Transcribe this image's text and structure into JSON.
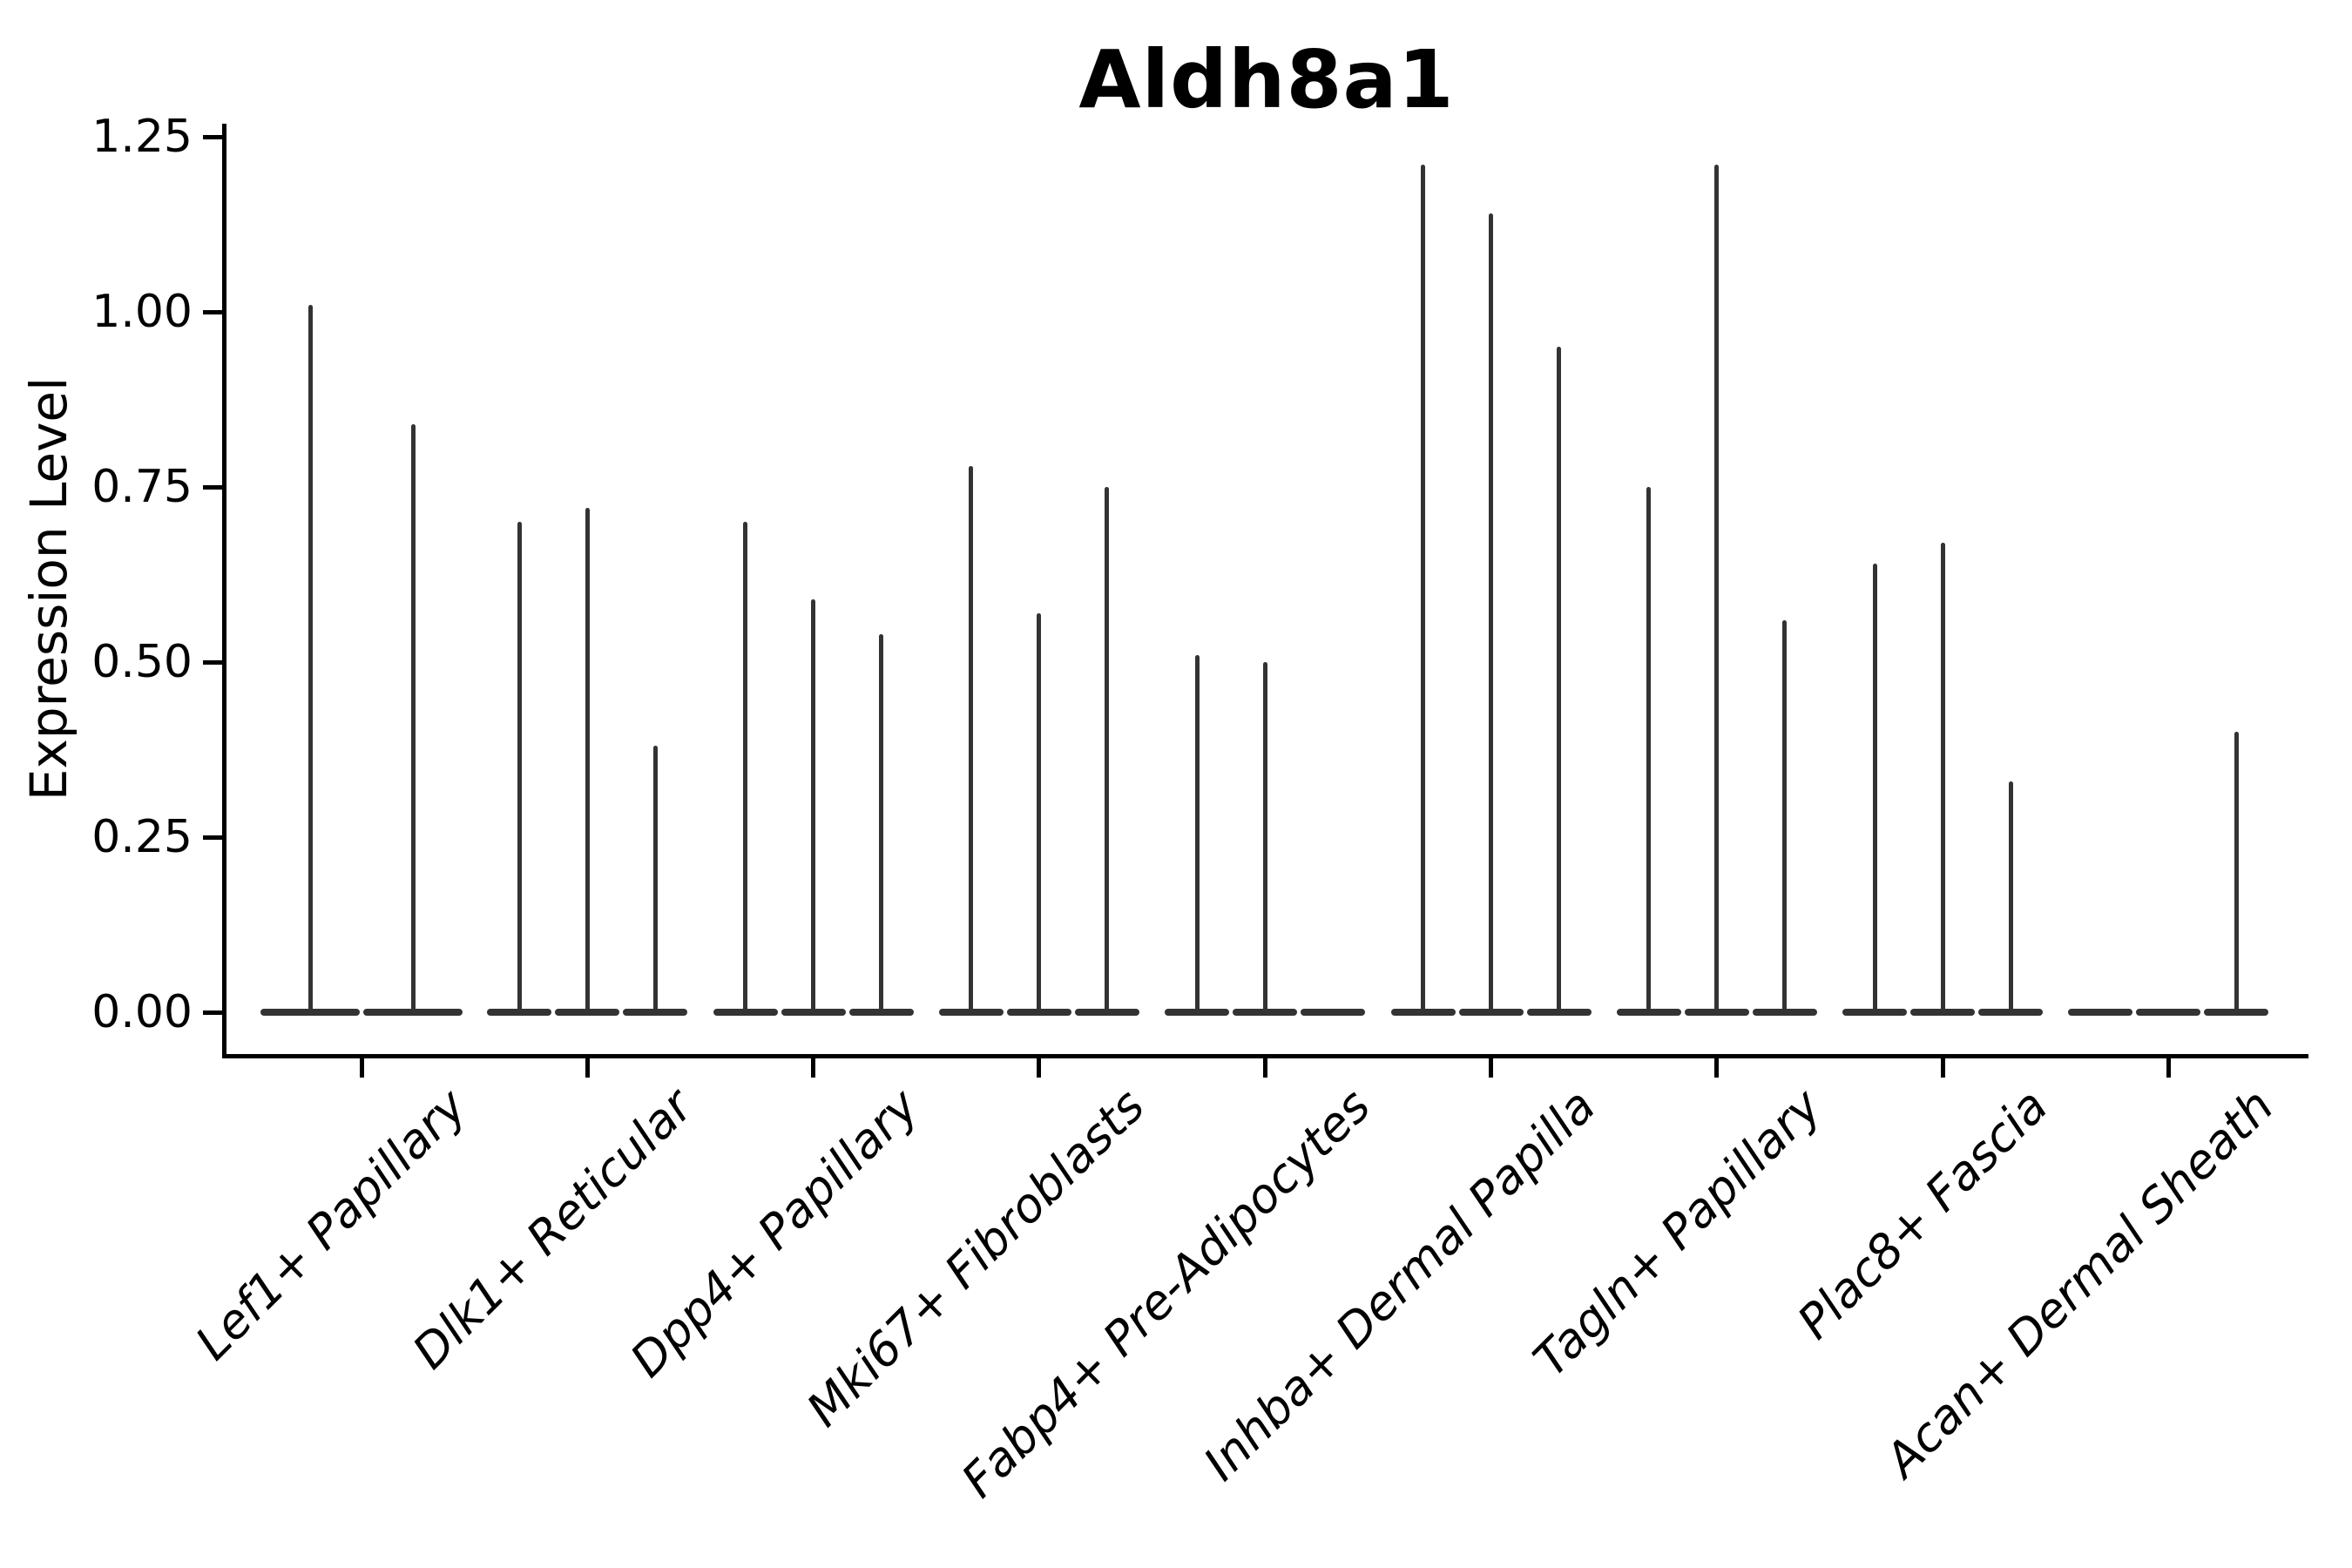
{
  "title": "Aldh8a1",
  "ylabel": "Expression Level",
  "chart_data": {
    "type": "violin",
    "title": "Aldh8a1",
    "xlabel": "",
    "ylabel": "Expression Level",
    "ylim": [
      -0.06,
      1.27
    ],
    "grid": false,
    "legend": "none",
    "yticks": [
      0.0,
      0.25,
      0.5,
      0.75,
      1.0,
      1.25
    ],
    "yticklabels": [
      "0.00",
      "0.25",
      "0.50",
      "0.75",
      "1.00",
      "1.25"
    ],
    "categories": [
      "Lef1+ Papillary",
      "Dlk1+ Reticular",
      "Dpp4+ Papillary",
      "Mki67+ Fibroblasts",
      "Fabp4+ Pre-Adipocytes",
      "Inhba+ Dermal Papilla",
      "Tagln+ Papillary",
      "Plac8+ Fascia",
      "Acan+ Dermal Sheath"
    ],
    "groups": [
      {
        "category": "Lef1+ Papillary",
        "violins": [
          {
            "dx": -59,
            "width": 118,
            "peak": 1.01
          },
          {
            "dx": 59,
            "width": 118,
            "peak": 0.84
          }
        ]
      },
      {
        "category": "Dlk1+ Reticular",
        "violins": [
          {
            "dx": -78,
            "width": 78,
            "peak": 0.7
          },
          {
            "dx": 0,
            "width": 78,
            "peak": 0.72
          },
          {
            "dx": 78,
            "width": 78,
            "peak": 0.38
          }
        ]
      },
      {
        "category": "Dpp4+ Papillary",
        "violins": [
          {
            "dx": -78,
            "width": 78,
            "peak": 0.7
          },
          {
            "dx": 0,
            "width": 78,
            "peak": 0.59
          },
          {
            "dx": 78,
            "width": 78,
            "peak": 0.54
          }
        ]
      },
      {
        "category": "Mki67+ Fibroblasts",
        "violins": [
          {
            "dx": -78,
            "width": 78,
            "peak": 0.78
          },
          {
            "dx": 0,
            "width": 78,
            "peak": 0.57
          },
          {
            "dx": 78,
            "width": 78,
            "peak": 0.75
          }
        ]
      },
      {
        "category": "Fabp4+ Pre-Adipocytes",
        "violins": [
          {
            "dx": -78,
            "width": 78,
            "peak": 0.51
          },
          {
            "dx": 0,
            "width": 78,
            "peak": 0.5
          },
          {
            "dx": 78,
            "width": 78,
            "peak": 0.0
          }
        ]
      },
      {
        "category": "Inhba+ Dermal Papilla",
        "violins": [
          {
            "dx": -78,
            "width": 78,
            "peak": 1.21
          },
          {
            "dx": 0,
            "width": 78,
            "peak": 1.14
          },
          {
            "dx": 78,
            "width": 78,
            "peak": 0.95
          }
        ]
      },
      {
        "category": "Tagln+ Papillary",
        "violins": [
          {
            "dx": -78,
            "width": 78,
            "peak": 0.75
          },
          {
            "dx": 0,
            "width": 78,
            "peak": 1.21
          },
          {
            "dx": 78,
            "width": 78,
            "peak": 0.56
          }
        ]
      },
      {
        "category": "Plac8+ Fascia",
        "violins": [
          {
            "dx": -78,
            "width": 78,
            "peak": 0.64
          },
          {
            "dx": 0,
            "width": 78,
            "peak": 0.67
          },
          {
            "dx": 78,
            "width": 78,
            "peak": 0.33
          }
        ]
      },
      {
        "category": "Acan+ Dermal Sheath",
        "violins": [
          {
            "dx": -78,
            "width": 78,
            "peak": 0.0
          },
          {
            "dx": 0,
            "width": 78,
            "peak": 0.0
          },
          {
            "dx": 78,
            "width": 78,
            "peak": 0.4
          }
        ]
      }
    ],
    "style": {
      "violin_color": "#333333",
      "axis_color": "#000000",
      "background": "#ffffff"
    }
  }
}
